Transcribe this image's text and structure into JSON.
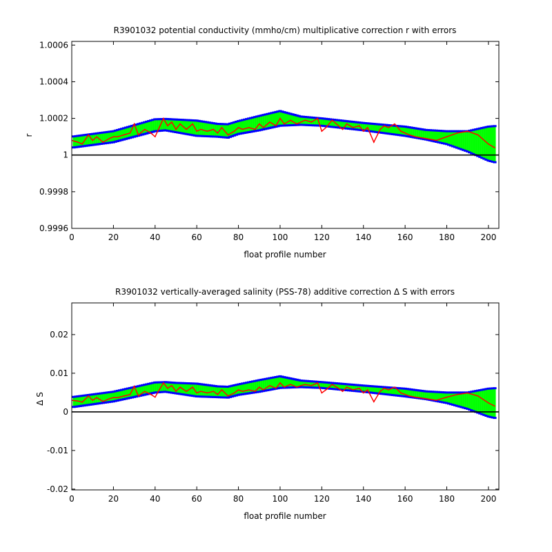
{
  "chart_data": [
    {
      "type": "line",
      "title": "R3901032 potential conductivity (mmho/cm) multiplicative correction r with errors",
      "xlabel": "float profile number",
      "ylabel": "r",
      "xlim": [
        0,
        205
      ],
      "ylim": [
        0.9996,
        1.00062
      ],
      "x_ticks": [
        0,
        20,
        40,
        60,
        80,
        100,
        120,
        140,
        160,
        180,
        200
      ],
      "x_tick_labels": [
        "0",
        "20",
        "40",
        "60",
        "80",
        "100",
        "120",
        "140",
        "160",
        "180",
        "200"
      ],
      "y_ticks": [
        0.9996,
        0.9998,
        1.0,
        1.0002,
        1.0004,
        1.0006
      ],
      "y_tick_labels": [
        "0.9996",
        "0.9998",
        "1",
        "1.0002",
        "1.0004",
        "1.0006"
      ],
      "reference_line": 1.0,
      "grid": false,
      "series": [
        {
          "role": "error_band",
          "color": "#00ff00",
          "edge_color": "#0000ff",
          "x": [
            0,
            20,
            40,
            45,
            50,
            60,
            70,
            75,
            80,
            90,
            100,
            110,
            120,
            140,
            160,
            170,
            180,
            190,
            200,
            205
          ],
          "upper": [
            1.0001,
            1.00013,
            1.000195,
            1.000197,
            1.000194,
            1.000188,
            1.00017,
            1.000168,
            1.000185,
            1.000213,
            1.00024,
            1.00021,
            1.0002,
            1.000175,
            1.000155,
            1.000137,
            1.00013,
            1.00013,
            1.000155,
            1.00016
          ],
          "lower": [
            1.00004,
            1.00007,
            1.00013,
            1.000135,
            1.000125,
            1.000105,
            1.0001,
            1.000095,
            1.000115,
            1.000135,
            1.00016,
            1.000165,
            1.00016,
            1.000135,
            1.000105,
            1.000085,
            1.00006,
            1.00002,
            0.99997,
            0.999955
          ]
        },
        {
          "role": "estimate",
          "color": "#ff0000",
          "x": [
            0,
            3,
            5,
            8,
            10,
            12,
            15,
            18,
            20,
            22,
            25,
            28,
            30,
            32,
            35,
            38,
            40,
            42,
            44,
            46,
            48,
            50,
            52,
            55,
            58,
            60,
            62,
            65,
            68,
            70,
            72,
            75,
            78,
            80,
            82,
            85,
            88,
            90,
            92,
            95,
            98,
            100,
            102,
            105,
            108,
            110,
            112,
            115,
            118,
            120,
            122,
            125,
            128,
            130,
            132,
            135,
            138,
            140,
            142,
            145,
            148,
            150,
            152,
            155,
            158,
            160,
            162,
            165,
            170,
            175,
            180,
            185,
            190,
            195,
            200,
            203
          ],
          "y": [
            1.00008,
            1.00007,
            1.00006,
            1.00011,
            1.00008,
            1.0001,
            1.00007,
            1.00009,
            1.0001,
            1.0001,
            1.00011,
            1.00012,
            1.00017,
            1.00011,
            1.00014,
            1.00012,
            1.0001,
            1.00015,
            1.0002,
            1.00016,
            1.00018,
            1.00014,
            1.00017,
            1.00014,
            1.00017,
            1.00013,
            1.00014,
            1.00013,
            1.00014,
            1.00012,
            1.00015,
            1.00011,
            1.00013,
            1.00015,
            1.00014,
            1.00015,
            1.00014,
            1.00017,
            1.00015,
            1.00018,
            1.00016,
            1.0002,
            1.00017,
            1.00019,
            1.00017,
            1.00018,
            1.00019,
            1.00018,
            1.0002,
            1.00013,
            1.00015,
            1.00019,
            1.00016,
            1.00014,
            1.00017,
            1.00015,
            1.00016,
            1.00013,
            1.00015,
            1.00007,
            1.00014,
            1.00016,
            1.00015,
            1.00017,
            1.00013,
            1.00012,
            1.00011,
            1.0001,
            1.00009,
            1.00008,
            1.0001,
            1.00012,
            1.00013,
            1.00011,
            1.00006,
            1.00004
          ]
        }
      ]
    },
    {
      "type": "line",
      "title": "R3901032 vertically-averaged salinity (PSS-78) additive correction Δ S with errors",
      "xlabel": "float profile number",
      "ylabel": "Δ S",
      "xlim": [
        0,
        205
      ],
      "ylim": [
        -0.0202,
        0.0282
      ],
      "x_ticks": [
        0,
        20,
        40,
        60,
        80,
        100,
        120,
        140,
        160,
        180,
        200
      ],
      "x_tick_labels": [
        "0",
        "20",
        "40",
        "60",
        "80",
        "100",
        "120",
        "140",
        "160",
        "180",
        "200"
      ],
      "y_ticks": [
        -0.02,
        -0.01,
        0,
        0.01,
        0.02
      ],
      "y_tick_labels": [
        "-0.02",
        "-0.01",
        "0",
        "0.01",
        "0.02"
      ],
      "reference_line": 0,
      "grid": false,
      "series": [
        {
          "role": "error_band",
          "color": "#00ff00",
          "edge_color": "#0000ff",
          "x": [
            0,
            20,
            40,
            45,
            50,
            60,
            70,
            75,
            80,
            90,
            100,
            110,
            120,
            140,
            160,
            170,
            180,
            190,
            200,
            205
          ],
          "upper": [
            0.0038,
            0.0052,
            0.0076,
            0.0077,
            0.0075,
            0.0073,
            0.0066,
            0.0065,
            0.0071,
            0.0082,
            0.0092,
            0.0081,
            0.0077,
            0.0068,
            0.006,
            0.0053,
            0.005,
            0.005,
            0.006,
            0.0062
          ],
          "lower": [
            0.0012,
            0.0027,
            0.005,
            0.0052,
            0.0048,
            0.004,
            0.0038,
            0.0037,
            0.0044,
            0.0052,
            0.0062,
            0.0064,
            0.0062,
            0.0052,
            0.004,
            0.0033,
            0.0023,
            0.0008,
            -0.0012,
            -0.0018
          ]
        },
        {
          "role": "estimate",
          "color": "#ff0000",
          "x": [
            0,
            3,
            5,
            8,
            10,
            12,
            15,
            18,
            20,
            22,
            25,
            28,
            30,
            32,
            35,
            38,
            40,
            42,
            44,
            46,
            48,
            50,
            52,
            55,
            58,
            60,
            62,
            65,
            68,
            70,
            72,
            75,
            78,
            80,
            82,
            85,
            88,
            90,
            92,
            95,
            98,
            100,
            102,
            105,
            108,
            110,
            112,
            115,
            118,
            120,
            122,
            125,
            128,
            130,
            132,
            135,
            138,
            140,
            142,
            145,
            148,
            150,
            152,
            155,
            158,
            160,
            162,
            165,
            170,
            175,
            180,
            185,
            190,
            195,
            200,
            203
          ],
          "y": [
            0.003,
            0.0028,
            0.0025,
            0.0041,
            0.003,
            0.0037,
            0.0027,
            0.0034,
            0.0037,
            0.0037,
            0.0041,
            0.0045,
            0.0066,
            0.0041,
            0.0053,
            0.0045,
            0.0038,
            0.0057,
            0.0075,
            0.0061,
            0.0068,
            0.0053,
            0.0064,
            0.0053,
            0.0064,
            0.0049,
            0.0053,
            0.0049,
            0.0053,
            0.0045,
            0.0057,
            0.0041,
            0.0049,
            0.0057,
            0.0053,
            0.0057,
            0.0053,
            0.0064,
            0.0057,
            0.0068,
            0.0061,
            0.0075,
            0.0064,
            0.0071,
            0.0064,
            0.0068,
            0.0071,
            0.0068,
            0.0075,
            0.0049,
            0.0057,
            0.0071,
            0.0061,
            0.0053,
            0.0064,
            0.0057,
            0.0061,
            0.0049,
            0.0057,
            0.0026,
            0.0053,
            0.0061,
            0.0057,
            0.0064,
            0.0049,
            0.0045,
            0.0041,
            0.0038,
            0.0034,
            0.003,
            0.0038,
            0.0045,
            0.0049,
            0.0041,
            0.0023,
            0.0015
          ]
        }
      ]
    }
  ]
}
